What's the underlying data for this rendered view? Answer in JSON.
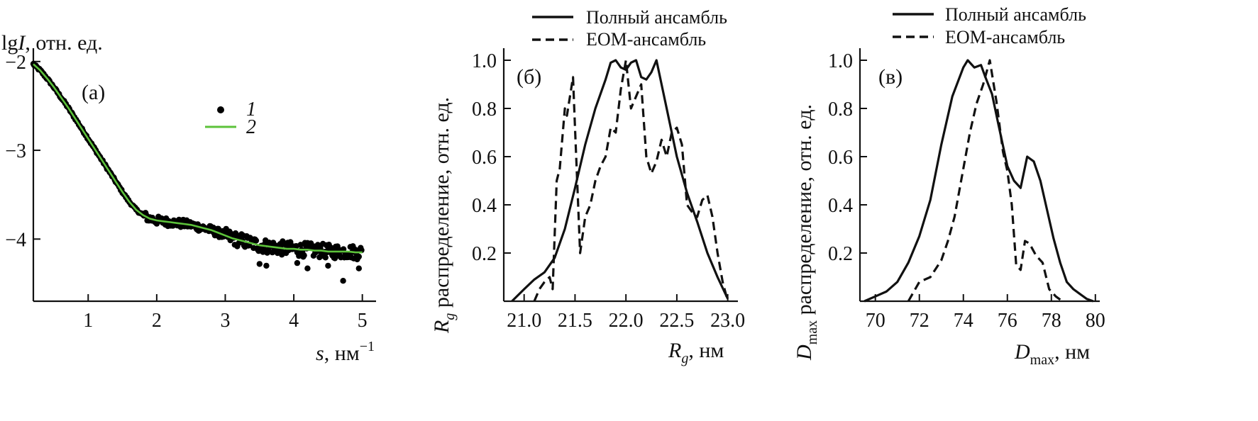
{
  "chart_data": [
    {
      "id": "a",
      "type": "scatter",
      "panel_label": "(a)",
      "ylabel": {
        "main": "lg",
        "ital": "I",
        "rest": ", отн. ед."
      },
      "xlabel": {
        "ital": "s",
        "rest": ", нм",
        "sup": "−1"
      },
      "xlim": [
        0.2,
        5.2
      ],
      "ylim": [
        -4.7,
        -1.85
      ],
      "xticks": [
        1,
        2,
        3,
        4,
        5
      ],
      "xtick_labels": [
        "1",
        "2",
        "3",
        "4",
        "5"
      ],
      "yticks": [
        -2,
        -3,
        -4
      ],
      "ytick_labels": [
        "−2",
        "−3",
        "−4"
      ],
      "legend": [
        {
          "label": "1",
          "marker": "dot"
        },
        {
          "label": "2",
          "marker": "line"
        }
      ],
      "colors": {
        "points": "#000000",
        "fit": "#5cc23a"
      },
      "series": [
        {
          "name": "1",
          "kind": "points",
          "x": [
            0.2,
            0.3,
            0.4,
            0.5,
            0.6,
            0.7,
            0.8,
            0.9,
            1.0,
            1.1,
            1.2,
            1.3,
            1.4,
            1.5,
            1.6,
            1.7,
            1.8,
            1.9,
            2.0,
            2.1,
            2.2,
            2.3,
            2.4,
            2.5,
            2.6,
            2.7,
            2.8,
            2.9,
            3.0,
            3.1,
            3.2,
            3.3,
            3.4,
            3.5,
            3.6,
            3.7,
            3.8,
            3.9,
            4.0,
            4.1,
            4.2,
            4.3,
            4.4,
            4.5,
            4.6,
            4.7,
            4.8,
            4.9,
            5.0
          ],
          "y": [
            -2.03,
            -2.1,
            -2.19,
            -2.29,
            -2.4,
            -2.51,
            -2.63,
            -2.75,
            -2.87,
            -2.99,
            -3.11,
            -3.23,
            -3.35,
            -3.47,
            -3.58,
            -3.67,
            -3.73,
            -3.77,
            -3.79,
            -3.8,
            -3.81,
            -3.82,
            -3.83,
            -3.84,
            -3.86,
            -3.88,
            -3.9,
            -3.93,
            -3.96,
            -3.99,
            -4.01,
            -4.03,
            -4.05,
            -4.07,
            -4.08,
            -4.09,
            -4.1,
            -4.11,
            -4.11,
            -4.12,
            -4.12,
            -4.13,
            -4.13,
            -4.14,
            -4.14,
            -4.14,
            -4.14,
            -4.15,
            -4.15
          ],
          "spread": 0.08,
          "outliers": [
            [
              3.5,
              -4.28
            ],
            [
              3.6,
              -4.3
            ],
            [
              4.2,
              -4.33
            ],
            [
              4.5,
              -4.3
            ],
            [
              4.72,
              -4.47
            ],
            [
              4.95,
              -4.33
            ],
            [
              4.05,
              -4.27
            ]
          ]
        },
        {
          "name": "2",
          "kind": "line",
          "x": [
            0.2,
            0.3,
            0.4,
            0.5,
            0.6,
            0.7,
            0.8,
            0.9,
            1.0,
            1.1,
            1.2,
            1.3,
            1.4,
            1.5,
            1.6,
            1.7,
            1.8,
            1.9,
            2.0,
            2.1,
            2.2,
            2.3,
            2.4,
            2.5,
            2.6,
            2.7,
            2.8,
            2.9,
            3.0,
            3.1,
            3.2,
            3.3,
            3.4,
            3.5,
            3.6,
            3.7,
            3.8,
            3.9,
            4.0,
            4.1,
            4.2,
            4.3,
            4.4,
            4.5,
            4.6,
            4.7,
            4.8,
            4.9,
            5.0
          ],
          "y": [
            -2.03,
            -2.1,
            -2.19,
            -2.29,
            -2.4,
            -2.51,
            -2.63,
            -2.75,
            -2.87,
            -2.99,
            -3.11,
            -3.23,
            -3.35,
            -3.47,
            -3.58,
            -3.67,
            -3.73,
            -3.77,
            -3.79,
            -3.8,
            -3.81,
            -3.82,
            -3.83,
            -3.84,
            -3.86,
            -3.88,
            -3.9,
            -3.93,
            -3.96,
            -3.99,
            -4.01,
            -4.03,
            -4.05,
            -4.07,
            -4.08,
            -4.09,
            -4.1,
            -4.11,
            -4.11,
            -4.12,
            -4.12,
            -4.13,
            -4.13,
            -4.14,
            -4.14,
            -4.14,
            -4.14,
            -4.15,
            -4.15
          ]
        }
      ]
    },
    {
      "id": "b",
      "type": "line",
      "panel_label": "(б)",
      "ylabel": {
        "ital": "R",
        "sub": "g",
        "rest": " распределение, отн. ед."
      },
      "xlabel": {
        "ital": "R",
        "sub": "g",
        "rest": ", нм"
      },
      "xlim": [
        20.8,
        23.1
      ],
      "ylim": [
        0,
        1.05
      ],
      "xticks": [
        21.0,
        21.5,
        22.0,
        22.5,
        23.0
      ],
      "xtick_labels": [
        "21.0",
        "21.5",
        "22.0",
        "22.5",
        "23.0"
      ],
      "yticks": [
        0.2,
        0.4,
        0.6,
        0.8,
        1.0
      ],
      "ytick_labels": [
        "0.2",
        "0.4",
        "0.6",
        "0.8",
        "1.0"
      ],
      "legend": [
        {
          "label": "Полный ансамбль",
          "style": "solid"
        },
        {
          "label": "EOM-ансамбль",
          "style": "dashed"
        }
      ],
      "series": [
        {
          "name": "Полный ансамбль",
          "style": "solid",
          "x": [
            20.88,
            21.0,
            21.1,
            21.2,
            21.3,
            21.4,
            21.5,
            21.6,
            21.7,
            21.8,
            21.85,
            21.9,
            21.95,
            22.0,
            22.05,
            22.1,
            22.15,
            22.2,
            22.25,
            22.3,
            22.4,
            22.5,
            22.6,
            22.7,
            22.8,
            22.9,
            23.0
          ],
          "y": [
            0.0,
            0.05,
            0.09,
            0.12,
            0.18,
            0.3,
            0.47,
            0.65,
            0.8,
            0.92,
            0.99,
            1.0,
            0.97,
            0.96,
            0.99,
            1.0,
            0.93,
            0.92,
            0.95,
            1.0,
            0.8,
            0.6,
            0.45,
            0.33,
            0.2,
            0.1,
            0.01
          ]
        },
        {
          "name": "EOM-ансамбль",
          "style": "dashed",
          "x": [
            21.1,
            21.15,
            21.2,
            21.25,
            21.28,
            21.32,
            21.35,
            21.4,
            21.42,
            21.45,
            21.48,
            21.5,
            21.55,
            21.6,
            21.65,
            21.7,
            21.75,
            21.8,
            21.85,
            21.9,
            21.95,
            22.0,
            22.05,
            22.1,
            22.15,
            22.2,
            22.25,
            22.3,
            22.35,
            22.4,
            22.45,
            22.5,
            22.55,
            22.6,
            22.65,
            22.7,
            22.75,
            22.8,
            22.85,
            22.9,
            22.95,
            23.0
          ],
          "y": [
            0.0,
            0.05,
            0.08,
            0.1,
            0.05,
            0.5,
            0.55,
            0.8,
            0.77,
            0.85,
            0.93,
            0.72,
            0.2,
            0.35,
            0.4,
            0.5,
            0.56,
            0.6,
            0.72,
            0.7,
            0.88,
            1.0,
            0.8,
            0.85,
            0.9,
            0.6,
            0.53,
            0.58,
            0.67,
            0.6,
            0.7,
            0.72,
            0.65,
            0.4,
            0.37,
            0.35,
            0.42,
            0.44,
            0.35,
            0.2,
            0.08,
            0.0
          ]
        }
      ]
    },
    {
      "id": "c",
      "type": "line",
      "panel_label": "(в)",
      "ylabel": {
        "ital": "D",
        "sub": "max",
        "rest": " распределение, отн. ед."
      },
      "xlabel": {
        "ital": "D",
        "sub": "max",
        "rest": ", нм"
      },
      "xlim": [
        69.3,
        80.2
      ],
      "ylim": [
        0,
        1.05
      ],
      "xticks": [
        70,
        72,
        74,
        76,
        78,
        80
      ],
      "xtick_labels": [
        "70",
        "72",
        "74",
        "76",
        "78",
        "80"
      ],
      "yticks": [
        0.2,
        0.4,
        0.6,
        0.8,
        1.0
      ],
      "ytick_labels": [
        "0.2",
        "0.4",
        "0.6",
        "0.8",
        "1.0"
      ],
      "legend": [
        {
          "label": "Полный ансамбль",
          "style": "solid"
        },
        {
          "label": "EOM-ансамбль",
          "style": "dashed"
        }
      ],
      "series": [
        {
          "name": "Полный ансамбль",
          "style": "solid",
          "x": [
            69.5,
            70.0,
            70.5,
            71.0,
            71.5,
            72.0,
            72.5,
            73.0,
            73.5,
            74.0,
            74.2,
            74.5,
            74.8,
            75.0,
            75.3,
            75.6,
            76.0,
            76.3,
            76.6,
            76.9,
            77.2,
            77.5,
            77.8,
            78.1,
            78.4,
            78.7,
            79.0,
            79.3,
            79.6,
            79.9
          ],
          "y": [
            0.0,
            0.02,
            0.04,
            0.08,
            0.16,
            0.27,
            0.42,
            0.65,
            0.85,
            0.97,
            1.0,
            0.97,
            0.98,
            0.93,
            0.86,
            0.73,
            0.56,
            0.5,
            0.47,
            0.6,
            0.58,
            0.5,
            0.38,
            0.26,
            0.16,
            0.08,
            0.05,
            0.03,
            0.01,
            0.0
          ]
        },
        {
          "name": "EOM-ансамбль",
          "style": "dashed",
          "x": [
            71.5,
            72.0,
            72.5,
            73.0,
            73.3,
            73.6,
            74.0,
            74.3,
            74.6,
            74.9,
            75.2,
            75.5,
            75.8,
            76.0,
            76.2,
            76.4,
            76.6,
            76.8,
            77.0,
            77.3,
            77.6,
            77.9,
            78.2,
            78.5
          ],
          "y": [
            0.0,
            0.08,
            0.1,
            0.17,
            0.25,
            0.35,
            0.55,
            0.7,
            0.82,
            0.9,
            1.0,
            0.83,
            0.62,
            0.54,
            0.4,
            0.15,
            0.13,
            0.25,
            0.24,
            0.19,
            0.16,
            0.05,
            0.02,
            0.0
          ]
        }
      ]
    }
  ]
}
